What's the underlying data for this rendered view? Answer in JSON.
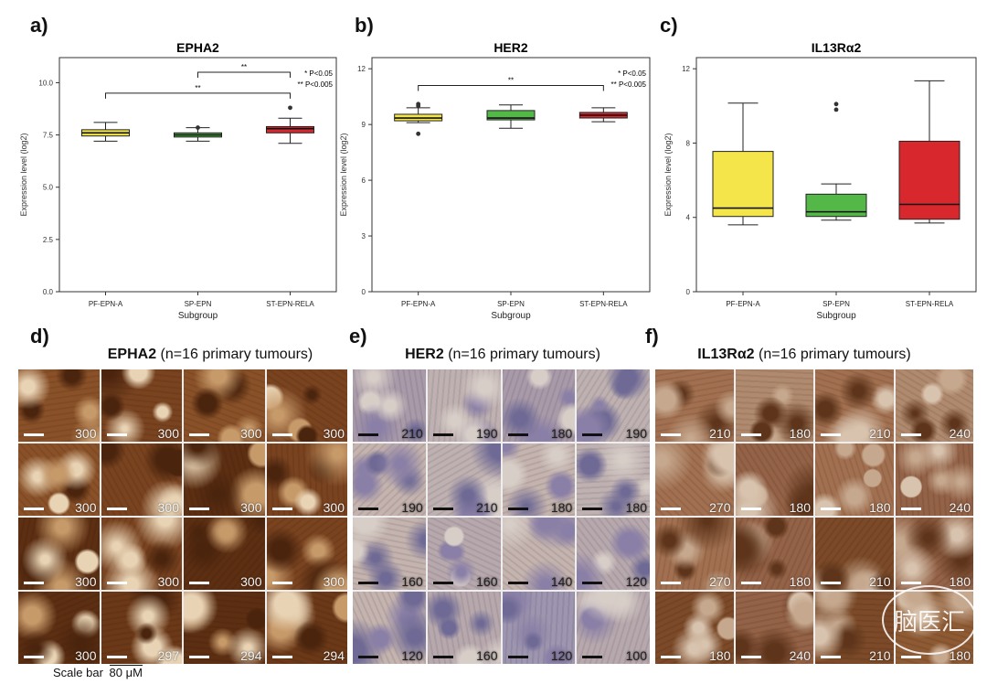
{
  "panel_labels": [
    "a)",
    "b)",
    "c)",
    "d)",
    "e)",
    "f)"
  ],
  "chart_data": [
    {
      "type": "box",
      "title": "EPHA2",
      "xlabel": "Subgroup",
      "ylabel": "Expression level (log2)",
      "ylim": [
        0,
        11.2
      ],
      "yticks": [
        "0.0",
        "2.5",
        "5.0",
        "7.5",
        "10.0"
      ],
      "yticks_values": [
        0,
        2.5,
        5,
        7.5,
        10
      ],
      "categories": [
        "PF-EPN-A",
        "SP-EPN",
        "ST-EPN-RELA"
      ],
      "colors": [
        "#f4e64a",
        "#54b848",
        "#d9272e"
      ],
      "boxes": [
        {
          "min": 7.2,
          "q1": 7.45,
          "median": 7.6,
          "q3": 7.75,
          "max": 8.1,
          "outliers": []
        },
        {
          "min": 7.2,
          "q1": 7.4,
          "median": 7.5,
          "q3": 7.6,
          "max": 7.85,
          "outliers": [
            7.85
          ]
        },
        {
          "min": 7.1,
          "q1": 7.6,
          "median": 7.8,
          "q3": 7.9,
          "max": 8.3,
          "outliers": [
            8.8
          ]
        }
      ],
      "significance": [
        {
          "from": 1,
          "to": 2,
          "label": "**",
          "y": 10.5
        },
        {
          "from": 0,
          "to": 2,
          "label": "**",
          "y": 9.5
        }
      ],
      "legend_lines": [
        "* P<0.05",
        "** P<0.005"
      ]
    },
    {
      "type": "box",
      "title": "HER2",
      "xlabel": "Subgroup",
      "ylabel": "Expression level (log2)",
      "ylim": [
        0,
        12.6
      ],
      "yticks": [
        "0",
        "3",
        "6",
        "9",
        "12"
      ],
      "yticks_values": [
        0,
        3,
        6,
        9,
        12
      ],
      "categories": [
        "PF-EPN-A",
        "SP-EPN",
        "ST-EPN-RELA"
      ],
      "colors": [
        "#f4e64a",
        "#54b848",
        "#d9272e"
      ],
      "boxes": [
        {
          "min": 9.1,
          "q1": 9.2,
          "median": 9.35,
          "q3": 9.55,
          "max": 9.9,
          "outliers": [
            8.5,
            10.0,
            10.1
          ]
        },
        {
          "min": 8.8,
          "q1": 9.25,
          "median": 9.35,
          "q3": 9.75,
          "max": 10.05,
          "outliers": []
        },
        {
          "min": 9.15,
          "q1": 9.35,
          "median": 9.5,
          "q3": 9.65,
          "max": 9.9,
          "outliers": []
        }
      ],
      "significance": [
        {
          "from": 0,
          "to": 2,
          "label": "**",
          "y": 11.1
        }
      ],
      "legend_lines": [
        "* P<0.05",
        "** P<0.005"
      ]
    },
    {
      "type": "box",
      "title": "IL13Rα2",
      "xlabel": "Subgroup",
      "ylabel": "Expression level (log2)",
      "ylim": [
        0,
        12.6
      ],
      "yticks": [
        "0",
        "4",
        "8",
        "12"
      ],
      "yticks_values": [
        0,
        4,
        8,
        12
      ],
      "categories": [
        "PF-EPN-A",
        "SP-EPN",
        "ST-EPN-RELA"
      ],
      "colors": [
        "#f4e64a",
        "#54b848",
        "#d9272e"
      ],
      "boxes": [
        {
          "min": 3.6,
          "q1": 4.05,
          "median": 4.5,
          "q3": 7.55,
          "max": 10.15,
          "outliers": []
        },
        {
          "min": 3.85,
          "q1": 4.05,
          "median": 4.3,
          "q3": 5.25,
          "max": 5.8,
          "outliers": [
            9.8,
            10.1
          ]
        },
        {
          "min": 3.7,
          "q1": 3.9,
          "median": 4.7,
          "q3": 8.1,
          "max": 11.35,
          "outliers": []
        }
      ],
      "significance": [],
      "legend_lines": []
    }
  ],
  "ihc_panels": [
    {
      "title_bold": "EPHA2",
      "title_rest": " (n=16 primary tumours)",
      "scores": [
        "300",
        "300",
        "300",
        "300",
        "300",
        "300",
        "300",
        "300",
        "300",
        "300",
        "300",
        "300",
        "300",
        "297",
        "294",
        "294"
      ],
      "stain": "dark-brown"
    },
    {
      "title_bold": "HER2",
      "title_rest": " (n=16 primary tumours)",
      "scores": [
        "210",
        "190",
        "180",
        "190",
        "190",
        "210",
        "180",
        "180",
        "160",
        "160",
        "140",
        "120",
        "120",
        "160",
        "120",
        "100"
      ],
      "stain": "light-purple"
    },
    {
      "title_bold": "IL13Rα2",
      "title_rest": " (n=16 primary tumours)",
      "scores": [
        "210",
        "180",
        "210",
        "240",
        "270",
        "180",
        "180",
        "240",
        "270",
        "180",
        "210",
        "180",
        "180",
        "240",
        "210",
        "180"
      ],
      "stain": "mixed-brown"
    }
  ],
  "scale_bar_label": "Scale bar",
  "scale_bar_value": "80 μM",
  "watermark_text": "脑医汇"
}
